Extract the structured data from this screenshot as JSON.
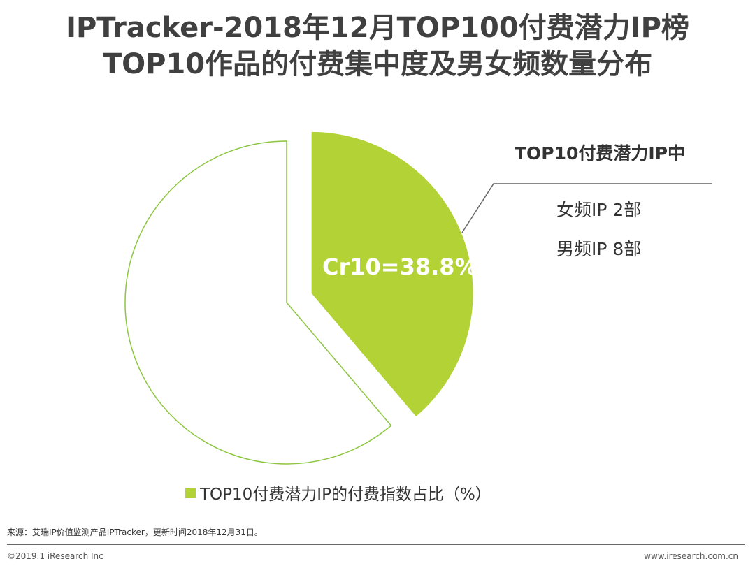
{
  "title": {
    "line1": "IPTracker-2018年12月TOP100付费潜力IP榜",
    "line2": "TOP10作品的付费集中度及男女频数量分布"
  },
  "chart_data": {
    "type": "pie",
    "slices": [
      {
        "label": "Cr10=38.8%",
        "value": 38.8,
        "color": "#b2d235",
        "exploded": true
      },
      {
        "label": "",
        "value": 61.2,
        "color": "#ffffff",
        "stroke": "#8cc63f"
      }
    ],
    "legend": [
      "TOP10付费潜力IP的付费指数占比（%）"
    ],
    "legend_placement": "bottom"
  },
  "side": {
    "heading": "TOP10付费潜力IP中",
    "items": [
      "女频IP 2部",
      "男频IP 8部"
    ]
  },
  "footer": {
    "source": "来源：艾瑞IP价值监测产品IPTracker，更新时间2018年12月31日。",
    "copyright": "©2019.1 iResearch Inc",
    "website": "www.iresearch.com.cn"
  },
  "colors": {
    "accent": "#b2d235",
    "outline": "#8cc63f"
  }
}
